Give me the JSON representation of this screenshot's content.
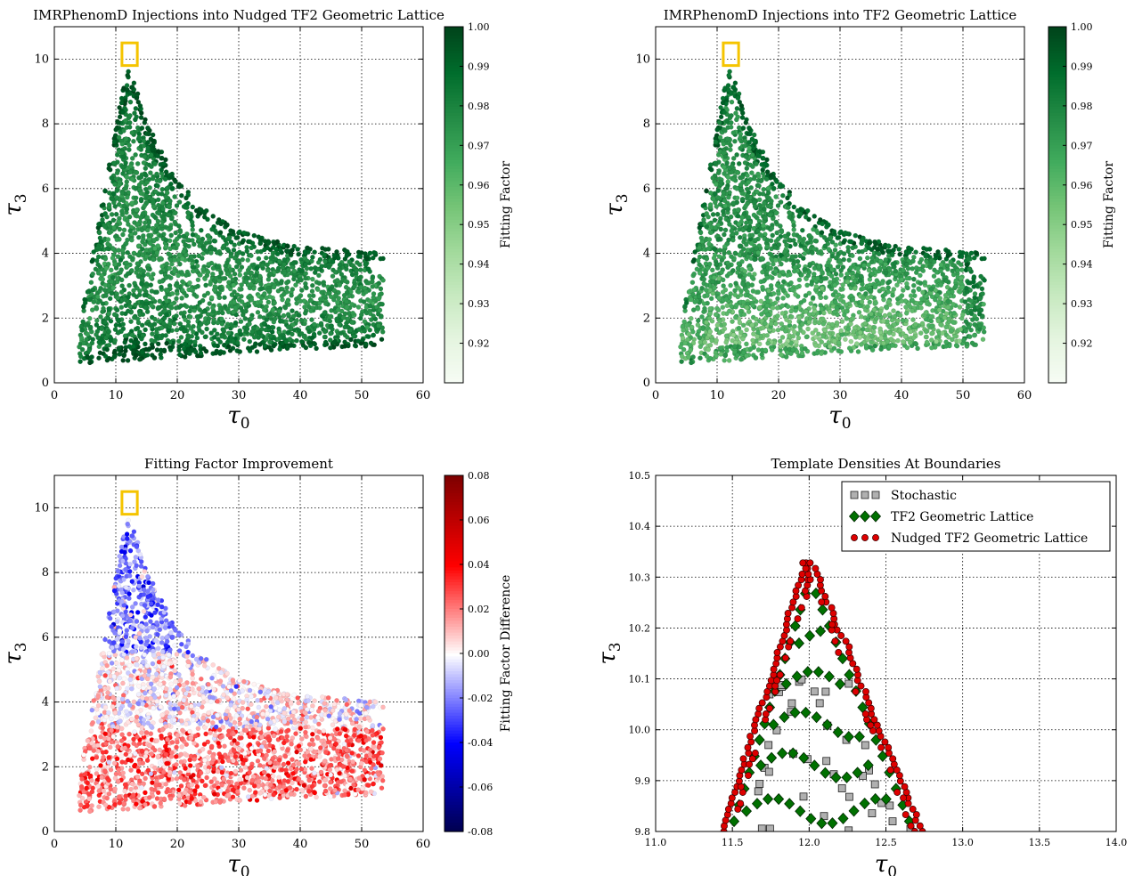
{
  "figure": {
    "symbols": {
      "tau0": "τ",
      "tau0_sub": "0",
      "tau3": "τ",
      "tau3_sub": "3"
    }
  },
  "chart_data": [
    {
      "type": "scatter",
      "title": "IMRPhenomD Injections into Nudged TF2 Geometric Lattice",
      "xlabel": "τ0",
      "ylabel": "τ3",
      "xlim": [
        0,
        60
      ],
      "ylim": [
        0,
        11
      ],
      "xticks": [
        0,
        10,
        20,
        30,
        40,
        50,
        60
      ],
      "yticks": [
        0,
        2,
        4,
        6,
        8,
        10
      ],
      "grid": true,
      "colormap": "Greens",
      "color_range": [
        0.91,
        1.0
      ],
      "colorbar_label": "Fitting Factor",
      "colorbar_ticks": [
        "0.92",
        "0.93",
        "0.94",
        "0.95",
        "0.96",
        "0.97",
        "0.98",
        "0.99",
        "1.00"
      ],
      "region": "triangle: apex (12, 10), upper edge to (53, 4.2), lower edge (4, 0.6) to (53, 1.1)",
      "highlight_box": {
        "x": [
          11,
          13.5
        ],
        "y": [
          9.8,
          10.5
        ],
        "color": "#f5c400"
      },
      "point_count": 2600,
      "value_distribution": "mostly 0.97-1.00"
    },
    {
      "type": "scatter",
      "title": "IMRPhenomD Injections into TF2 Geometric Lattice",
      "xlabel": "τ0",
      "ylabel": "τ3",
      "xlim": [
        0,
        60
      ],
      "ylim": [
        0,
        11
      ],
      "xticks": [
        0,
        10,
        20,
        30,
        40,
        50,
        60
      ],
      "yticks": [
        0,
        2,
        4,
        6,
        8,
        10
      ],
      "grid": true,
      "colormap": "Greens",
      "color_range": [
        0.91,
        1.0
      ],
      "colorbar_label": "Fitting Factor",
      "colorbar_ticks": [
        "0.92",
        "0.93",
        "0.94",
        "0.95",
        "0.96",
        "0.97",
        "0.98",
        "0.99",
        "1.00"
      ],
      "region": "triangle: apex (12, 10), upper edge to (53, 4.2), lower edge (4, 0.6) to (53, 1.1)",
      "highlight_box": {
        "x": [
          11,
          13.5
        ],
        "y": [
          9.8,
          10.5
        ],
        "color": "#f5c400"
      },
      "point_count": 2600,
      "value_distribution": "0.93-1.00, lower values near low tau3"
    },
    {
      "type": "scatter",
      "title": "Fitting Factor Improvement",
      "xlabel": "τ0",
      "ylabel": "τ3",
      "xlim": [
        0,
        60
      ],
      "ylim": [
        0,
        11
      ],
      "xticks": [
        0,
        10,
        20,
        30,
        40,
        50,
        60
      ],
      "yticks": [
        0,
        2,
        4,
        6,
        8,
        10
      ],
      "grid": true,
      "colormap": "seismic",
      "color_range": [
        -0.08,
        0.08
      ],
      "colorbar_label": "Fitting Factor Difference",
      "colorbar_ticks": [
        "-0.08",
        "-0.06",
        "-0.04",
        "-0.02",
        "0.00",
        "0.02",
        "0.04",
        "0.06",
        "0.08"
      ],
      "region": "triangle: apex (12, 10), upper edge to (53, 4.2), lower edge (4, 0.6) to (53, 1.1)",
      "highlight_box": {
        "x": [
          11,
          13.5
        ],
        "y": [
          9.8,
          10.5
        ],
        "color": "#f5c400"
      },
      "point_count": 2600,
      "value_distribution": "positive (red) at low tau3, negative (blue) near apex"
    },
    {
      "type": "scatter",
      "title": "Template Densities At Boundaries",
      "xlabel": "τ0",
      "ylabel": "τ3",
      "xlim": [
        11.0,
        14.0
      ],
      "ylim": [
        9.8,
        10.5
      ],
      "xticks": [
        "11.0",
        "11.5",
        "12.0",
        "12.5",
        "13.0",
        "13.5",
        "14.0"
      ],
      "yticks": [
        "9.8",
        "9.9",
        "10.0",
        "10.1",
        "10.2",
        "10.3",
        "10.4",
        "10.5"
      ],
      "grid": true,
      "legend_position": "top-right",
      "series": [
        {
          "name": "Stochastic",
          "marker": "square",
          "color": "#b0b0b0",
          "layout": "random within apex triangle",
          "count": 40
        },
        {
          "name": "TF2 Geometric Lattice",
          "marker": "diamond",
          "color": "#007000",
          "layout": "edge rows plus interior zig-zag rows",
          "count": 75
        },
        {
          "name": "Nudged TF2 Geometric Lattice",
          "marker": "circle",
          "color": "#dd0000",
          "layout": "dense along both triangle edges",
          "count": 95
        }
      ],
      "region": "triangle: apex (12.0, 10.33), base from (11.45, 9.8) to (12.72, 9.8)"
    }
  ]
}
